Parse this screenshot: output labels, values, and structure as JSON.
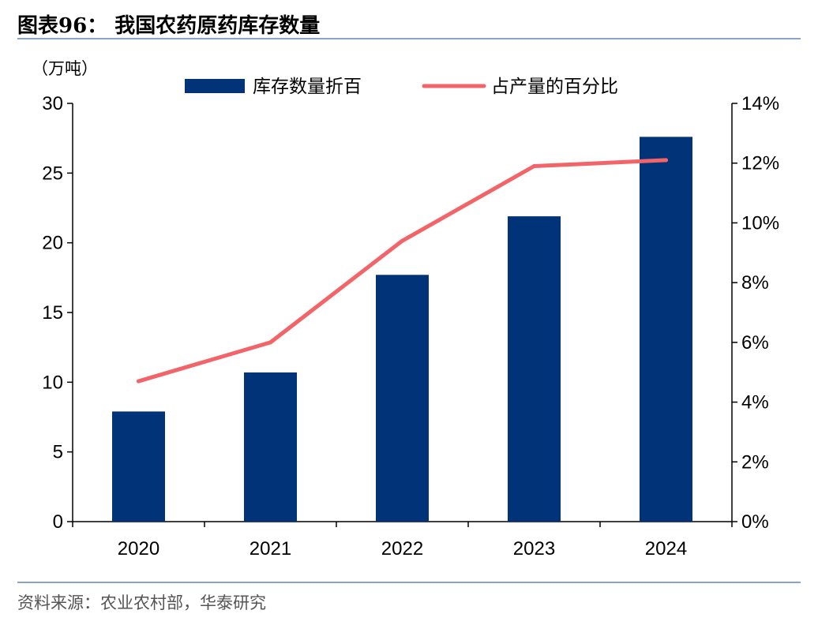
{
  "header": {
    "title": "图表96：   我国农药原药库存数量"
  },
  "footer": {
    "source": "资料来源：农业农村部，华泰研究"
  },
  "chart_data": {
    "type": "bar",
    "categories": [
      "2020",
      "2021",
      "2022",
      "2023",
      "2024"
    ],
    "unit_label": "（万吨）",
    "series": [
      {
        "name": "库存数量折百",
        "type": "bar",
        "axis": "left",
        "color": "#003378",
        "values": [
          7.9,
          10.7,
          17.7,
          21.9,
          27.6
        ]
      },
      {
        "name": "占产量的百分比",
        "type": "line",
        "axis": "right",
        "color": "#f26468",
        "values": [
          4.7,
          6.0,
          9.4,
          11.9,
          12.1
        ]
      }
    ],
    "left_axis": {
      "min": 0,
      "max": 30,
      "ticks": [
        0,
        5,
        10,
        15,
        20,
        25,
        30
      ],
      "tick_labels": [
        "0",
        "5",
        "10",
        "15",
        "20",
        "25",
        "30"
      ]
    },
    "right_axis": {
      "min": 0,
      "max": 14,
      "ticks": [
        0,
        2,
        4,
        6,
        8,
        10,
        12,
        14
      ],
      "tick_labels": [
        "0%",
        "2%",
        "4%",
        "6%",
        "8%",
        "10%",
        "12%",
        "14%"
      ]
    },
    "grid": false,
    "legend_position": "top-center"
  }
}
